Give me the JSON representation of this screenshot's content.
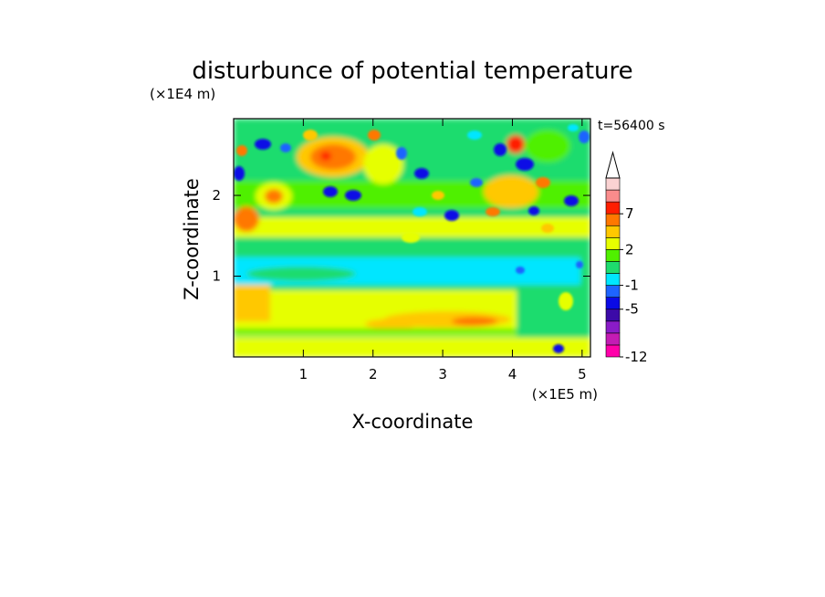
{
  "chart_data": {
    "type": "heatmap",
    "title": "disturbunce of potential temperature",
    "time_label": "t=56400 s",
    "xlabel": "X-coordinate",
    "ylabel": "Z-coordinate",
    "x_unit": "(×1E5 m)",
    "y_unit": "(×1E4 m)",
    "xlim": [
      0,
      5.12
    ],
    "ylim": [
      0,
      2.95
    ],
    "x_ticks": [
      1,
      2,
      3,
      4,
      5
    ],
    "y_ticks": [
      1,
      2
    ],
    "x_tick_labels": [
      "1",
      "2",
      "3",
      "4",
      "5"
    ],
    "y_tick_labels": [
      "1",
      "2"
    ],
    "colorbar": {
      "levels": [
        -12,
        -11,
        -9,
        -7,
        -5,
        -3,
        -1,
        0,
        1,
        2,
        3,
        5,
        7,
        9,
        11
      ],
      "colors": [
        "#ff00aa",
        "#c41cb4",
        "#8a1cc8",
        "#3c0aa8",
        "#0a0ae6",
        "#1e64ff",
        "#00e6ff",
        "#1edc6e",
        "#50f000",
        "#e6ff00",
        "#ffc800",
        "#ff7800",
        "#ff1e00",
        "#fa8c8c",
        "#fad2d2"
      ],
      "tick_labels": [
        "-12",
        "-5",
        "-1",
        "2",
        "7"
      ],
      "extend": "max"
    },
    "colors": {
      "background": "#ffffff",
      "base_field": "#1edc6e",
      "low_layer": "#e6ff00",
      "mid_layer": "#00e6ff"
    }
  }
}
